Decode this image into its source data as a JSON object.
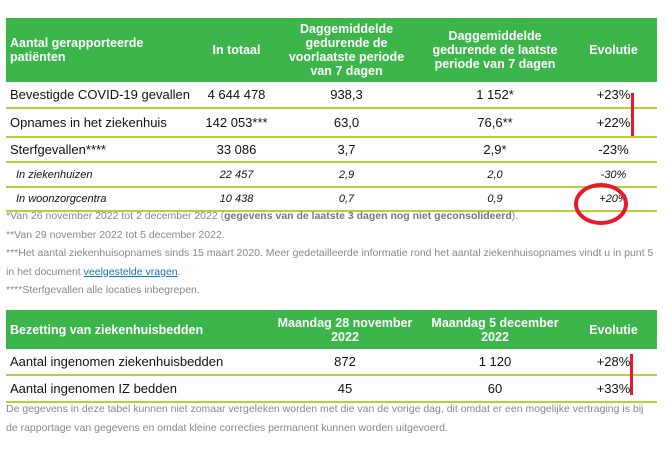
{
  "table1": {
    "headers": [
      "Aantal gerapporteerde patiënten",
      "In totaal",
      "Daggemiddelde gedurende de voorlaatste periode van 7 dagen",
      "Daggemiddelde gedurende de laatste periode van 7 dagen",
      "Evolutie"
    ],
    "rows": [
      [
        "Bevestigde COVID-19 gevallen",
        "4 644 478",
        "938,3",
        "1 152*",
        "+23%"
      ],
      [
        "Opnames in het ziekenhuis",
        "142 053***",
        "63,0",
        "76,6**",
        "+22%"
      ],
      [
        "Sterfgevallen****",
        "33 086",
        "3,7",
        "2,9*",
        "-23%"
      ],
      [
        "In ziekenhuizen",
        "22 457",
        "2,9",
        "2,0",
        "-30%"
      ],
      [
        "In woonzorgcentra",
        "10 438",
        "0,7",
        "0,9",
        "+20%"
      ]
    ]
  },
  "footnotes": {
    "f1_pre": "*Van 26 november 2022 tot 2 december 2022 (",
    "f1_bold": "gegevens van de laatste 3 dagen nog niet geconsolideerd",
    "f1_post": ").",
    "f2": "**Van 29 november 2022 tot 5 december 2022.",
    "f3_pre": "***Het aantal ziekenhuisopnames sinds 15 maart 2020. Meer gedetailleerde informatie rond het aantal ziekenhuisopnames vindt u in punt 5 in het document ",
    "f3_link": "veelgestelde vragen",
    "f3_post": ".",
    "f4": "****Sterfgevallen alle locaties inbegrepen."
  },
  "table2": {
    "headers": [
      "Bezetting van ziekenhuisbedden",
      "Maandag 28 november 2022",
      "Maandag 5 december 2022",
      "Evolutie"
    ],
    "rows": [
      [
        "Aantal ingenomen ziekenhuisbedden",
        "872",
        "1 120",
        "+28%"
      ],
      [
        "Aantal ingenomen IZ bedden",
        "45",
        "60",
        "+33%"
      ]
    ]
  },
  "note2": "De gegevens in deze tabel kunnen niet zomaar vergeleken worden met die van de vorige dag, dit omdat er een mogelijke vertraging is bij de rapportage van gegevens en omdat kleine correcties permanent kunnen worden uitgevoerd.",
  "colors": {
    "header": "#3cb54a",
    "row_line": "#b8cf3a",
    "annotation": "#e8192c"
  }
}
